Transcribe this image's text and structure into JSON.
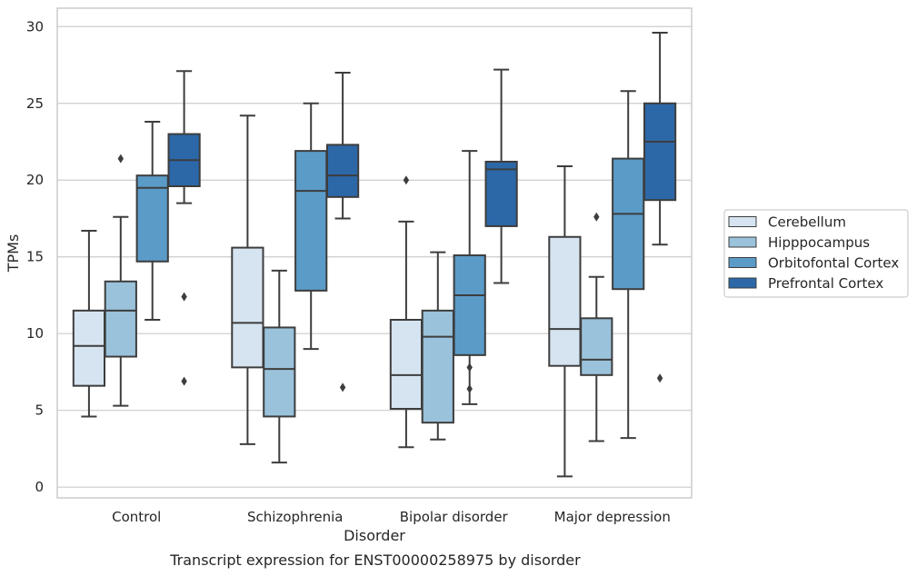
{
  "chart_data": {
    "type": "box",
    "xlabel": "Disorder",
    "ylabel": "TPMs",
    "caption": "Transcript expression for ENST00000258975 by disorder",
    "ylim": [
      -0.7,
      31.2
    ],
    "yticks": [
      0,
      5,
      10,
      15,
      20,
      25,
      30
    ],
    "grid": "horizontal",
    "legend_position": "right",
    "categories": [
      "Control",
      "Schizophrenia",
      "Bipolar disorder",
      "Major depression"
    ],
    "series": [
      {
        "name": "Cerebellum",
        "color": "#d6e4f1",
        "boxes": [
          {
            "whislo": 4.6,
            "q1": 6.6,
            "med": 9.2,
            "q3": 11.5,
            "whishi": 16.7,
            "fliers": []
          },
          {
            "whislo": 2.8,
            "q1": 7.8,
            "med": 10.7,
            "q3": 15.6,
            "whishi": 24.2,
            "fliers": []
          },
          {
            "whislo": 2.6,
            "q1": 5.1,
            "med": 7.3,
            "q3": 10.9,
            "whishi": 17.3,
            "fliers": [
              20.0
            ]
          },
          {
            "whislo": 0.7,
            "q1": 7.9,
            "med": 10.3,
            "q3": 16.3,
            "whishi": 20.9,
            "fliers": []
          }
        ]
      },
      {
        "name": "Hipppocampus",
        "color": "#9ac2db",
        "boxes": [
          {
            "whislo": 5.3,
            "q1": 8.5,
            "med": 11.5,
            "q3": 13.4,
            "whishi": 17.6,
            "fliers": [
              21.4
            ]
          },
          {
            "whislo": 1.6,
            "q1": 4.6,
            "med": 7.7,
            "q3": 10.4,
            "whishi": 14.1,
            "fliers": []
          },
          {
            "whislo": 3.1,
            "q1": 4.2,
            "med": 9.8,
            "q3": 11.5,
            "whishi": 15.3,
            "fliers": []
          },
          {
            "whislo": 3.0,
            "q1": 7.3,
            "med": 8.3,
            "q3": 11.0,
            "whishi": 13.7,
            "fliers": [
              17.6
            ]
          }
        ]
      },
      {
        "name": "Orbitofontal Cortex",
        "color": "#5b9bc8",
        "boxes": [
          {
            "whislo": 10.9,
            "q1": 14.7,
            "med": 19.5,
            "q3": 20.3,
            "whishi": 23.8,
            "fliers": []
          },
          {
            "whislo": 9.0,
            "q1": 12.8,
            "med": 19.3,
            "q3": 21.9,
            "whishi": 25.0,
            "fliers": []
          },
          {
            "whislo": 5.4,
            "q1": 8.6,
            "med": 12.5,
            "q3": 15.1,
            "whishi": 21.9,
            "fliers": [
              7.8,
              6.4
            ]
          },
          {
            "whislo": 3.2,
            "q1": 12.9,
            "med": 17.8,
            "q3": 21.4,
            "whishi": 25.8,
            "fliers": []
          }
        ]
      },
      {
        "name": "Prefrontal Cortex",
        "color": "#2c68a8",
        "boxes": [
          {
            "whislo": 18.5,
            "q1": 19.6,
            "med": 21.3,
            "q3": 23.0,
            "whishi": 27.1,
            "fliers": [
              12.4,
              6.9
            ]
          },
          {
            "whislo": 17.5,
            "q1": 18.9,
            "med": 20.3,
            "q3": 22.3,
            "whishi": 27.0,
            "fliers": [
              6.5
            ]
          },
          {
            "whislo": 13.3,
            "q1": 17.0,
            "med": 20.7,
            "q3": 21.2,
            "whishi": 27.2,
            "fliers": []
          },
          {
            "whislo": 15.8,
            "q1": 18.7,
            "med": 22.5,
            "q3": 25.0,
            "whishi": 29.6,
            "fliers": [
              7.1
            ]
          }
        ]
      }
    ]
  }
}
